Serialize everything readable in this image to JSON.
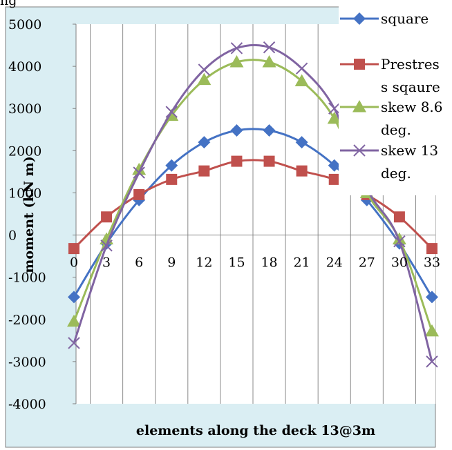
{
  "chart_data": {
    "type": "line",
    "title": "",
    "title_fragment": "ng",
    "xlabel": "elements along the deck 13@3m",
    "ylabel": "moment (kN m)",
    "x": [
      0,
      3,
      6,
      9,
      12,
      15,
      18,
      21,
      24,
      27,
      30,
      33
    ],
    "x_tick_labels": [
      "0",
      "3",
      "6",
      "9",
      "12",
      "15",
      "18",
      "21",
      "24",
      "27",
      "30",
      "33"
    ],
    "y_tick_labels": [
      "5000",
      "4000",
      "3000",
      "2000",
      "1000",
      "0",
      "-1000",
      "-2000",
      "-3000",
      "-4000"
    ],
    "ylim": [
      -4000,
      5000
    ],
    "grid": "vertical",
    "legend_position": "right",
    "series": [
      {
        "name": "square",
        "color": "#4472C4",
        "marker": "diamond",
        "values": [
          -1470,
          -200,
          830,
          1650,
          2200,
          2480,
          2480,
          2200,
          1650,
          830,
          -200,
          -1470
        ],
        "legend_lines": [
          "square"
        ]
      },
      {
        "name": "Prestress sqaure",
        "color": "#C0504D",
        "marker": "square",
        "values": [
          -320,
          430,
          960,
          1320,
          1520,
          1750,
          1750,
          1520,
          1320,
          960,
          430,
          -320
        ],
        "legend_lines": [
          "Prestres",
          "s sqaure"
        ]
      },
      {
        "name": "skew 8.6 deg.",
        "color": "#9BBB59",
        "marker": "triangle",
        "values": [
          -2050,
          -100,
          1550,
          2830,
          3680,
          4100,
          4100,
          3650,
          2760,
          1000,
          -100,
          -2280
        ],
        "legend_lines": [
          "skew 8.6",
          "deg."
        ]
      },
      {
        "name": "skew 13 deg.",
        "color": "#8064A2",
        "marker": "x",
        "values": [
          -2560,
          -250,
          1480,
          2920,
          3920,
          4430,
          4450,
          3950,
          3000,
          1100,
          -150,
          -3000
        ],
        "legend_lines": [
          "skew 13",
          "deg."
        ]
      }
    ]
  }
}
